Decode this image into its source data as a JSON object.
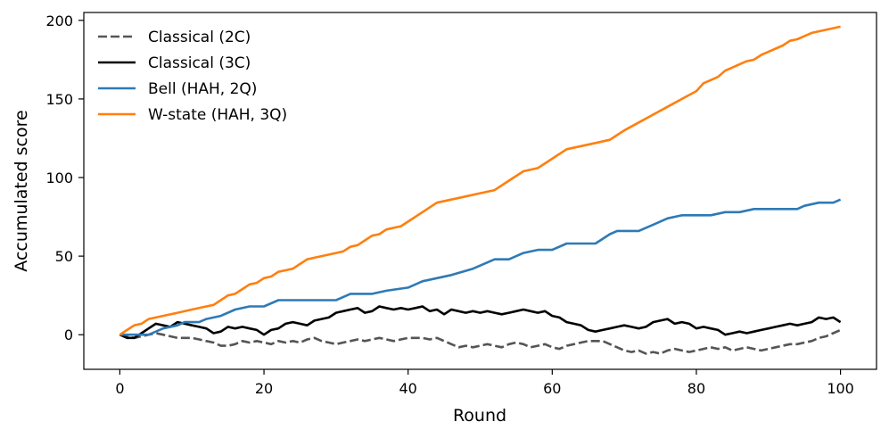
{
  "chart_data": {
    "type": "line",
    "xlabel": "Round",
    "ylabel": "Accumulated score",
    "xlim": [
      -5,
      105
    ],
    "ylim": [
      -22,
      205
    ],
    "xticks": [
      0,
      20,
      40,
      60,
      80,
      100
    ],
    "yticks": [
      0,
      50,
      100,
      150,
      200
    ],
    "grid": false,
    "legend_position": "top-left",
    "series": [
      {
        "name": "Classical (2C)",
        "color": "#555555",
        "linestyle": "dashed",
        "x": [
          0,
          1,
          2,
          3,
          4,
          5,
          6,
          7,
          8,
          9,
          10,
          11,
          12,
          13,
          14,
          15,
          16,
          17,
          18,
          19,
          20,
          21,
          22,
          23,
          24,
          25,
          26,
          27,
          28,
          29,
          30,
          31,
          32,
          33,
          34,
          35,
          36,
          37,
          38,
          39,
          40,
          41,
          42,
          43,
          44,
          45,
          46,
          47,
          48,
          49,
          50,
          51,
          52,
          53,
          54,
          55,
          56,
          57,
          58,
          59,
          60,
          61,
          62,
          63,
          64,
          65,
          66,
          67,
          68,
          69,
          70,
          71,
          72,
          73,
          74,
          75,
          76,
          77,
          78,
          79,
          80,
          81,
          82,
          83,
          84,
          85,
          86,
          87,
          88,
          89,
          90,
          91,
          92,
          93,
          94,
          95,
          96,
          97,
          98,
          99,
          100
        ],
        "y": [
          0,
          -1,
          -2,
          -1,
          0,
          1,
          0,
          -1,
          -2,
          -2,
          -2,
          -3,
          -4,
          -5,
          -7,
          -7,
          -6,
          -4,
          -5,
          -4,
          -5,
          -6,
          -4,
          -5,
          -4,
          -5,
          -3,
          -2,
          -4,
          -5,
          -6,
          -5,
          -4,
          -3,
          -4,
          -3,
          -2,
          -3,
          -4,
          -3,
          -2,
          -2,
          -2,
          -3,
          -2,
          -4,
          -6,
          -8,
          -7,
          -8,
          -7,
          -6,
          -7,
          -8,
          -6,
          -5,
          -6,
          -8,
          -7,
          -6,
          -8,
          -9,
          -7,
          -6,
          -5,
          -4,
          -4,
          -4,
          -6,
          -8,
          -10,
          -11,
          -10,
          -12,
          -11,
          -12,
          -10,
          -9,
          -10,
          -11,
          -10,
          -9,
          -8,
          -9,
          -8,
          -10,
          -9,
          -8,
          -9,
          -10,
          -9,
          -8,
          -7,
          -6,
          -6,
          -5,
          -4,
          -2,
          -1,
          1,
          3
        ]
      },
      {
        "name": "Classical (3C)",
        "color": "#000000",
        "linestyle": "solid",
        "x": [
          0,
          1,
          2,
          3,
          4,
          5,
          6,
          7,
          8,
          9,
          10,
          11,
          12,
          13,
          14,
          15,
          16,
          17,
          18,
          19,
          20,
          21,
          22,
          23,
          24,
          25,
          26,
          27,
          28,
          29,
          30,
          31,
          32,
          33,
          34,
          35,
          36,
          37,
          38,
          39,
          40,
          41,
          42,
          43,
          44,
          45,
          46,
          47,
          48,
          49,
          50,
          51,
          52,
          53,
          54,
          55,
          56,
          57,
          58,
          59,
          60,
          61,
          62,
          63,
          64,
          65,
          66,
          67,
          68,
          69,
          70,
          71,
          72,
          73,
          74,
          75,
          76,
          77,
          78,
          79,
          80,
          81,
          82,
          83,
          84,
          85,
          86,
          87,
          88,
          89,
          90,
          91,
          92,
          93,
          94,
          95,
          96,
          97,
          98,
          99,
          100
        ],
        "y": [
          0,
          -2,
          -2,
          1,
          4,
          7,
          6,
          5,
          8,
          7,
          6,
          5,
          4,
          1,
          2,
          5,
          4,
          5,
          4,
          3,
          0,
          3,
          4,
          7,
          8,
          7,
          6,
          9,
          10,
          11,
          14,
          15,
          16,
          17,
          14,
          15,
          18,
          17,
          16,
          17,
          16,
          17,
          18,
          15,
          16,
          13,
          16,
          15,
          14,
          15,
          14,
          15,
          14,
          13,
          14,
          15,
          16,
          15,
          14,
          15,
          12,
          11,
          8,
          7,
          6,
          3,
          2,
          3,
          4,
          5,
          6,
          5,
          4,
          5,
          8,
          9,
          10,
          7,
          8,
          7,
          4,
          5,
          4,
          3,
          0,
          1,
          2,
          1,
          2,
          3,
          4,
          5,
          6,
          7,
          6,
          7,
          8,
          11,
          10,
          11,
          8
        ]
      },
      {
        "name": "Bell (HAH, 2Q)",
        "color": "#2e7ab6",
        "linestyle": "solid",
        "x": [
          0,
          4,
          6,
          8,
          9,
          11,
          12,
          14,
          16,
          18,
          20,
          22,
          26,
          30,
          32,
          35,
          37,
          40,
          42,
          44,
          46,
          49,
          52,
          54,
          56,
          58,
          60,
          62,
          64,
          66,
          68,
          69,
          70,
          72,
          74,
          76,
          78,
          80,
          82,
          84,
          86,
          88,
          90,
          92,
          94,
          95,
          97,
          99,
          100
        ],
        "y": [
          0,
          0,
          4,
          6,
          8,
          8,
          10,
          12,
          16,
          18,
          18,
          22,
          22,
          22,
          26,
          26,
          28,
          30,
          34,
          36,
          38,
          42,
          48,
          48,
          52,
          54,
          54,
          58,
          58,
          58,
          64,
          66,
          66,
          66,
          70,
          74,
          76,
          76,
          76,
          78,
          78,
          80,
          80,
          80,
          80,
          82,
          84,
          84,
          86
        ]
      },
      {
        "name": "W-state (HAH, 3Q)",
        "color": "#ff7f0e",
        "linestyle": "solid",
        "x": [
          0,
          1,
          2,
          3,
          4,
          5,
          6,
          8,
          10,
          12,
          13,
          14,
          15,
          16,
          17,
          18,
          19,
          20,
          21,
          22,
          23,
          24,
          25,
          26,
          27,
          28,
          29,
          30,
          31,
          32,
          33,
          34,
          35,
          36,
          37,
          38,
          39,
          40,
          42,
          44,
          46,
          48,
          50,
          52,
          54,
          56,
          58,
          60,
          62,
          64,
          66,
          68,
          69,
          70,
          72,
          74,
          76,
          78,
          80,
          81,
          82,
          83,
          84,
          85,
          86,
          87,
          88,
          89,
          90,
          91,
          92,
          93,
          94,
          95,
          96,
          98,
          100
        ],
        "y": [
          0,
          3,
          6,
          7,
          10,
          11,
          12,
          14,
          16,
          18,
          19,
          22,
          25,
          26,
          29,
          32,
          33,
          36,
          37,
          40,
          41,
          42,
          45,
          48,
          49,
          50,
          51,
          52,
          53,
          56,
          57,
          60,
          63,
          64,
          67,
          68,
          69,
          72,
          78,
          84,
          86,
          88,
          90,
          92,
          98,
          104,
          106,
          112,
          118,
          120,
          122,
          124,
          127,
          130,
          135,
          140,
          145,
          150,
          155,
          160,
          162,
          164,
          168,
          170,
          172,
          174,
          175,
          178,
          180,
          182,
          184,
          187,
          188,
          190,
          192,
          194,
          196
        ]
      }
    ]
  }
}
